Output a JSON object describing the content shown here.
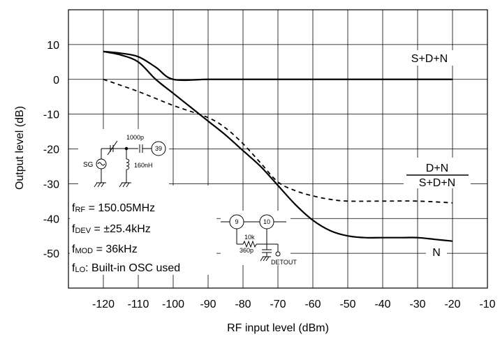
{
  "chart_data": {
    "type": "line",
    "xlabel": "RF input level (dBm)",
    "ylabel": "Output level (dB)",
    "xlim": [
      -130,
      -10
    ],
    "ylim": [
      -60,
      20
    ],
    "x_ticks": [
      -120,
      -110,
      -100,
      -90,
      -80,
      -70,
      -60,
      -50,
      -40,
      -30,
      -20,
      -10
    ],
    "y_ticks": [
      10,
      0,
      -10,
      -20,
      -30,
      -40,
      -50
    ],
    "grid": true,
    "series": [
      {
        "name": "S+D+N",
        "style": "solid",
        "x": [
          -120,
          -115,
          -110,
          -105,
          -100,
          -90,
          -80,
          -70,
          -60,
          -50,
          -40,
          -30,
          -20
        ],
        "y": [
          8,
          7.5,
          6.5,
          3.5,
          0,
          0,
          0,
          0,
          0,
          0,
          0,
          0,
          0
        ]
      },
      {
        "name": "N",
        "style": "solid",
        "x": [
          -120,
          -115,
          -110,
          -105,
          -100,
          -95,
          -90,
          -85,
          -80,
          -75,
          -70,
          -65,
          -60,
          -55,
          -50,
          -45,
          -40,
          -35,
          -30,
          -25,
          -20
        ],
        "y": [
          8,
          7,
          5,
          0,
          -4,
          -8,
          -12,
          -16,
          -20.5,
          -25,
          -30.5,
          -36,
          -40.5,
          -43.5,
          -45,
          -45.5,
          -45.5,
          -45.5,
          -45.5,
          -46,
          -46.5
        ]
      },
      {
        "name": "D+N / S+D+N",
        "style": "dashed",
        "x": [
          -120,
          -110,
          -100,
          -90,
          -85,
          -80,
          -75,
          -70,
          -65,
          -60,
          -55,
          -50,
          -40,
          -30,
          -20
        ],
        "y": [
          0,
          -3.5,
          -7.5,
          -11,
          -14,
          -18.5,
          -24,
          -29.5,
          -32,
          -33.5,
          -34.5,
          -35,
          -35,
          -35,
          -35.5
        ]
      }
    ],
    "labels": {
      "sdn": "S+D+N",
      "dn_num": "D+N",
      "dn_den": "S+D+N",
      "n": "N"
    },
    "conditions": [
      {
        "sym": "f",
        "sub": "RF",
        "text": " = 150.05MHz"
      },
      {
        "sym": "f",
        "sub": "DEV",
        "text": " =  ±25.4kHz"
      },
      {
        "sym": "f",
        "sub": "MOD",
        "text": " = 36kHz"
      },
      {
        "sym": "f",
        "sub": "LO",
        "text": ": Built-in OSC used"
      }
    ],
    "circuit1": {
      "source": "SG",
      "cap": "1000p",
      "inductor": "160nH",
      "pin": "39"
    },
    "circuit2": {
      "pin_a": "9",
      "pin_b": "10",
      "resistor": "10k",
      "cap": "360p",
      "output": "DETOUT"
    },
    "colors": {
      "line": "#000000",
      "grid": "#000000",
      "background": "#ffffff"
    }
  }
}
